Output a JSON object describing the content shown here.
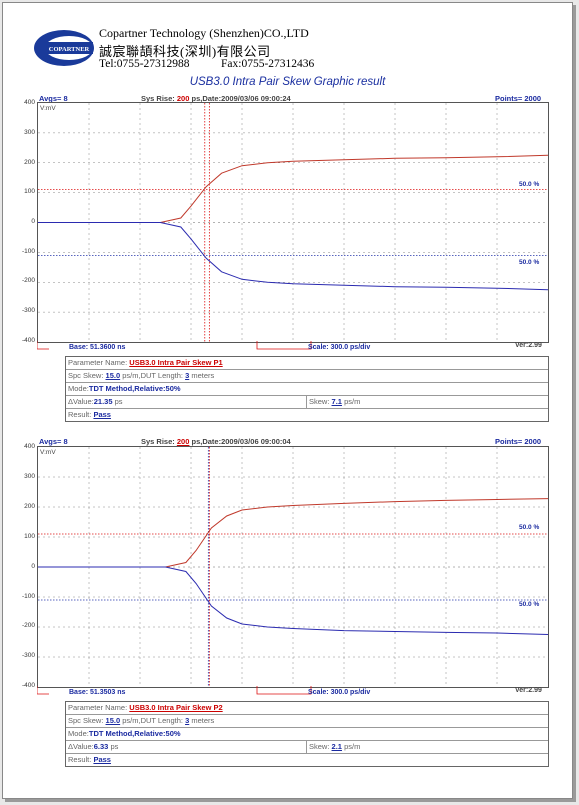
{
  "company": {
    "logo_text": "COPARTNER",
    "name_en": "Copartner Technology (Shenzhen)CO.,LTD",
    "name_cn": "誠宸聯頡科技(深圳)有限公司",
    "tel": "Tel:0755-27312988",
    "fax": "Fax:0755-27312436"
  },
  "doc_title": "USB3.0 Intra Pair Skew Graphic result",
  "colors": {
    "trace_p": "#c0392b",
    "trace_n": "#2b2bb0",
    "cursor_red": "#d11",
    "cursor_blue": "#2233aa",
    "label_blue": "#1a2aa0"
  },
  "panels": [
    {
      "header": {
        "avgs": "Avgs= 8",
        "sysrise_label": "Sys Rise:",
        "sysrise_value": "200",
        "date": "ps,Date:2009/03/06 09:00:24",
        "points": "Points= 2000"
      },
      "unit": "V:mV",
      "footer": {
        "base": "Base: 51.3600 ns",
        "scale": "Scale: 300.0 ps/div",
        "ver": "Ver:2.99"
      },
      "threshold_labels": [
        "50.0 %",
        "50.0 %"
      ],
      "table": {
        "param_label": "Parameter Name:",
        "param_value": "USB3.0 Intra Pair Skew P1",
        "spc_label": "Spc Skew:",
        "spc_value": "15.0",
        "spc_mid": "ps/m,DUT Length:",
        "dut_value": "3",
        "dut_unit": "meters",
        "mode_label": "Mode:",
        "mode_value": "TDT Method,Relative:50%",
        "delta_label": "ΔValue:",
        "delta_value": "21.35",
        "delta_unit": "ps",
        "skew_label": "Skew:",
        "skew_value": "7.1",
        "skew_unit": "ps/m",
        "result_label": "Result:",
        "result_value": "Pass"
      }
    },
    {
      "header": {
        "avgs": "Avgs= 8",
        "sysrise_label": "Sys Rise:",
        "sysrise_value": "200",
        "date": "ps,Date:2009/03/06 09:00:04",
        "points": "Points= 2000"
      },
      "unit": "V:mV",
      "footer": {
        "base": "Base: 51.3503 ns",
        "scale": "Scale: 300.0 ps/div",
        "ver": "Ver:2.99"
      },
      "threshold_labels": [
        "50.0 %",
        "50.0 %"
      ],
      "table": {
        "param_label": "Parameter Name:",
        "param_value": "USB3.0 Intra Pair Skew P2",
        "spc_label": "Spc Skew:",
        "spc_value": "15.0",
        "spc_mid": "ps/m,DUT Length:",
        "dut_value": "3",
        "dut_unit": "meters",
        "mode_label": "Mode:",
        "mode_value": "TDT Method,Relative:50%",
        "delta_label": "ΔValue:",
        "delta_value": "6.33",
        "delta_unit": "ps",
        "skew_label": "Skew:",
        "skew_value": "2.1",
        "skew_unit": "ps/m",
        "result_label": "Result:",
        "result_value": "Pass"
      }
    }
  ],
  "chart_data": [
    {
      "type": "line",
      "title": "USB3.0 Intra Pair Skew Graphic result",
      "ylabel": "V:mV",
      "ylim": [
        -400,
        400
      ],
      "yticks": [
        400,
        300,
        200,
        100,
        0,
        -100,
        -200,
        -300,
        -400
      ],
      "x_divisions": 10,
      "grid": true,
      "thresholds_mV": [
        110,
        -110
      ],
      "cursor_div": [
        3.27,
        3.36
      ],
      "series": [
        {
          "color": "#c0392b",
          "points": [
            [
              0,
              0
            ],
            [
              2.4,
              0
            ],
            [
              2.8,
              15
            ],
            [
              3.0,
              55
            ],
            [
              3.3,
              120
            ],
            [
              3.6,
              165
            ],
            [
              4,
              190
            ],
            [
              4.5,
              200
            ],
            [
              5,
              205
            ],
            [
              6,
              210
            ],
            [
              7,
              215
            ],
            [
              8,
              217
            ],
            [
              9,
              220
            ],
            [
              10,
              225
            ]
          ]
        },
        {
          "color": "#2b2bb0",
          "points": [
            [
              0,
              0
            ],
            [
              2.4,
              0
            ],
            [
              2.8,
              -15
            ],
            [
              3.0,
              -55
            ],
            [
              3.3,
              -120
            ],
            [
              3.6,
              -165
            ],
            [
              4,
              -190
            ],
            [
              4.5,
              -200
            ],
            [
              5,
              -205
            ],
            [
              6,
              -210
            ],
            [
              7,
              -215
            ],
            [
              8,
              -217
            ],
            [
              9,
              -220
            ],
            [
              10,
              -225
            ]
          ]
        }
      ]
    },
    {
      "type": "line",
      "title": "USB3.0 Intra Pair Skew Graphic result",
      "ylabel": "V:mV",
      "ylim": [
        -400,
        400
      ],
      "yticks": [
        400,
        300,
        200,
        100,
        0,
        -100,
        -200,
        -300,
        -400
      ],
      "x_divisions": 10,
      "grid": true,
      "thresholds_mV": [
        110,
        -110
      ],
      "cursor_div": [
        3.34,
        3.36
      ],
      "series": [
        {
          "color": "#c0392b",
          "points": [
            [
              0,
              0
            ],
            [
              2.5,
              0
            ],
            [
              2.9,
              15
            ],
            [
              3.1,
              55
            ],
            [
              3.4,
              130
            ],
            [
              3.7,
              170
            ],
            [
              4,
              190
            ],
            [
              4.5,
              200
            ],
            [
              5,
              205
            ],
            [
              6,
              212
            ],
            [
              7,
              218
            ],
            [
              8,
              222
            ],
            [
              9,
              225
            ],
            [
              10,
              228
            ]
          ]
        },
        {
          "color": "#2b2bb0",
          "points": [
            [
              0,
              0
            ],
            [
              2.5,
              0
            ],
            [
              2.9,
              -15
            ],
            [
              3.1,
              -55
            ],
            [
              3.4,
              -130
            ],
            [
              3.7,
              -170
            ],
            [
              4,
              -190
            ],
            [
              4.5,
              -200
            ],
            [
              5,
              -205
            ],
            [
              6,
              -212
            ],
            [
              7,
              -215
            ],
            [
              8,
              -218
            ],
            [
              9,
              -220
            ],
            [
              10,
              -225
            ]
          ]
        }
      ]
    }
  ]
}
